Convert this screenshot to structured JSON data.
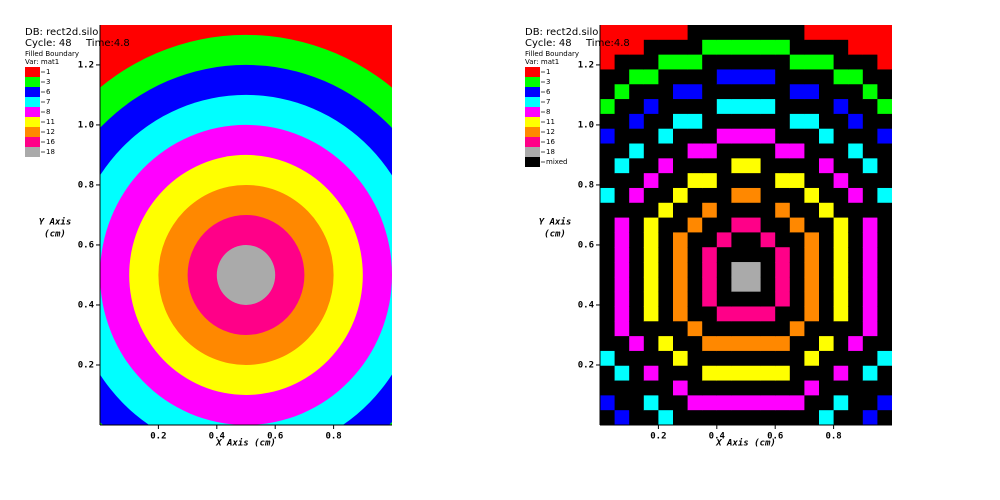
{
  "plots": [
    {
      "db": "DB: rect2d.silo",
      "cycle": "Cycle: 48",
      "time": "Time:4.8",
      "plot_type": "Filled Boundary",
      "var": "Var: mat1",
      "legend": [
        {
          "label": "1",
          "color": "#ff0000"
        },
        {
          "label": "3",
          "color": "#00ff00"
        },
        {
          "label": "6",
          "color": "#0000ff"
        },
        {
          "label": "7",
          "color": "#00ffff"
        },
        {
          "label": "8",
          "color": "#ff00ff"
        },
        {
          "label": "11",
          "color": "#ffff00"
        },
        {
          "label": "12",
          "color": "#ff8800"
        },
        {
          "label": "16",
          "color": "#ff0088"
        },
        {
          "label": "18",
          "color": "#aaaaaa"
        }
      ],
      "y_axis_label": "Y Axis",
      "y_axis_unit": "(cm)",
      "x_axis_label": "X Axis (cm)",
      "xlim": [
        0,
        1
      ],
      "ylim": [
        0,
        1.333
      ],
      "xticks": [
        0.2,
        0.4,
        0.6,
        0.8
      ],
      "yticks": [
        0.2,
        0.4,
        0.6,
        0.8,
        {
          "value": 1,
          "label": "1.0"
        },
        1.2
      ]
    },
    {
      "db": "DB: rect2d.silo",
      "cycle": "Cycle: 48",
      "time": "Time:4.8",
      "plot_type": "Filled Boundary",
      "var": "Var: mat1",
      "legend": [
        {
          "label": "1",
          "color": "#ff0000"
        },
        {
          "label": "3",
          "color": "#00ff00"
        },
        {
          "label": "6",
          "color": "#0000ff"
        },
        {
          "label": "7",
          "color": "#00ffff"
        },
        {
          "label": "8",
          "color": "#ff00ff"
        },
        {
          "label": "11",
          "color": "#ffff00"
        },
        {
          "label": "12",
          "color": "#ff8800"
        },
        {
          "label": "16",
          "color": "#ff0088"
        },
        {
          "label": "18",
          "color": "#aaaaaa"
        },
        {
          "label": "mixed",
          "color": "#000000"
        }
      ],
      "y_axis_label": "Y Axis",
      "y_axis_unit": "(cm)",
      "x_axis_label": "X Axis (cm)",
      "xlim": [
        0,
        1
      ],
      "ylim": [
        0,
        1.333
      ],
      "xticks": [
        0.2,
        0.4,
        0.6,
        0.8
      ],
      "yticks": [
        0.2,
        0.4,
        0.6,
        0.8,
        {
          "value": 1,
          "label": "1.0"
        },
        1.2
      ]
    }
  ]
}
